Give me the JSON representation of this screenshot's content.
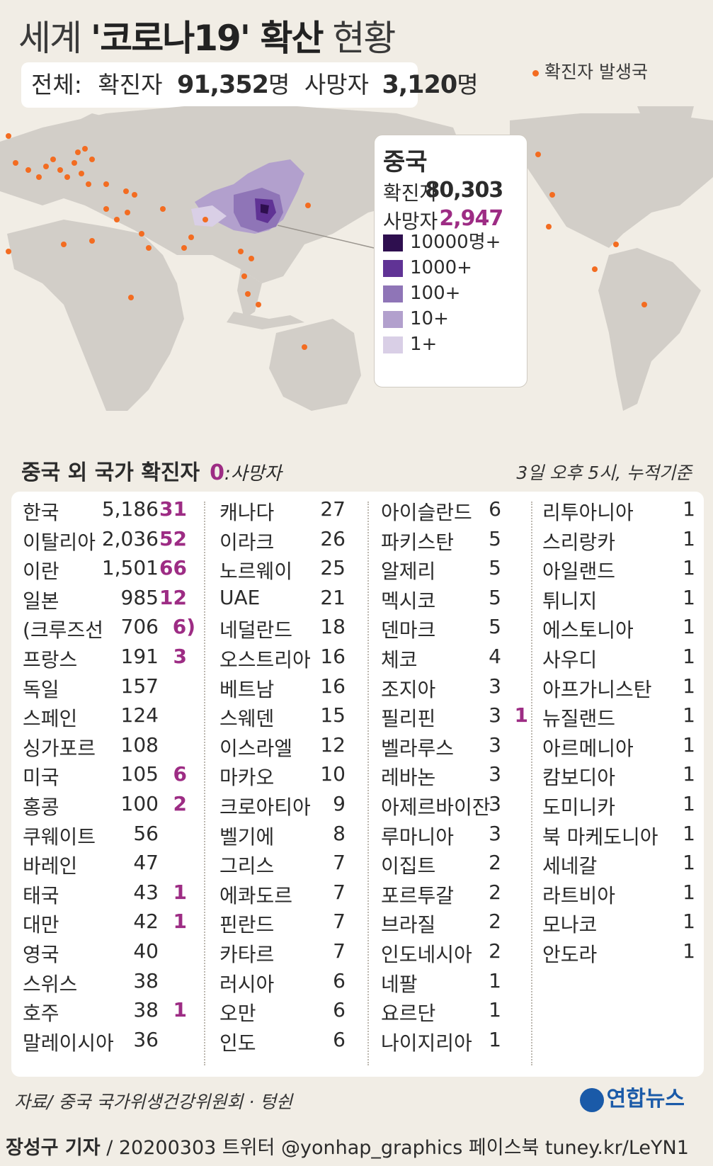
{
  "title": {
    "part1": "세계 ",
    "part2": "'코로나19' 확산",
    "part3": " 현황"
  },
  "total": {
    "label": "전체:",
    "confirmed_label": "확진자",
    "confirmed_value": "91,352",
    "unit1": "명",
    "death_label": "사망자",
    "death_value": "3,120",
    "unit2": "명"
  },
  "map_legend": "확진자 발생국",
  "china": {
    "name": "중국",
    "confirmed_label": "확진자",
    "confirmed_value": "80,303",
    "death_label": "사망자",
    "death_value": "2,947",
    "scale": [
      {
        "label": "10000명+",
        "color": "#2e0f4f"
      },
      {
        "label": "1000+",
        "color": "#603395"
      },
      {
        "label": "100+",
        "color": "#8f75b7"
      },
      {
        "label": "10+",
        "color": "#b2a0cd"
      },
      {
        "label": "1+",
        "color": "#d9cfe6"
      }
    ]
  },
  "section": {
    "title": "중국 외 국가 확진자",
    "zero": "0",
    "death_label": ":사망자",
    "date_note": "3일 오후 5시, 누적기준"
  },
  "columns": [
    [
      {
        "name": "한국",
        "confirmed": "5,186",
        "deaths": "31"
      },
      {
        "name": "이탈리아",
        "confirmed": "2,036",
        "deaths": "52"
      },
      {
        "name": "이란",
        "confirmed": "1,501",
        "deaths": "66"
      },
      {
        "name": "일본",
        "confirmed": "985",
        "deaths": "12"
      },
      {
        "name": "(크루즈선",
        "confirmed": "706",
        "deaths": "6",
        "suffix": ")"
      },
      {
        "name": "프랑스",
        "confirmed": "191",
        "deaths": "3"
      },
      {
        "name": "독일",
        "confirmed": "157",
        "deaths": ""
      },
      {
        "name": "스페인",
        "confirmed": "124",
        "deaths": ""
      },
      {
        "name": "싱가포르",
        "confirmed": "108",
        "deaths": ""
      },
      {
        "name": "미국",
        "confirmed": "105",
        "deaths": "6"
      },
      {
        "name": "홍콩",
        "confirmed": "100",
        "deaths": "2"
      },
      {
        "name": "쿠웨이트",
        "confirmed": "56",
        "deaths": ""
      },
      {
        "name": "바레인",
        "confirmed": "47",
        "deaths": ""
      },
      {
        "name": "태국",
        "confirmed": "43",
        "deaths": "1"
      },
      {
        "name": "대만",
        "confirmed": "42",
        "deaths": "1"
      },
      {
        "name": "영국",
        "confirmed": "40",
        "deaths": ""
      },
      {
        "name": "스위스",
        "confirmed": "38",
        "deaths": ""
      },
      {
        "name": "호주",
        "confirmed": "38",
        "deaths": "1"
      },
      {
        "name": "말레이시아",
        "confirmed": "36",
        "deaths": ""
      }
    ],
    [
      {
        "name": "캐나다",
        "confirmed": "27",
        "deaths": ""
      },
      {
        "name": "이라크",
        "confirmed": "26",
        "deaths": ""
      },
      {
        "name": "노르웨이",
        "confirmed": "25",
        "deaths": ""
      },
      {
        "name": "UAE",
        "confirmed": "21",
        "deaths": ""
      },
      {
        "name": "네덜란드",
        "confirmed": "18",
        "deaths": ""
      },
      {
        "name": "오스트리아",
        "confirmed": "16",
        "deaths": ""
      },
      {
        "name": "베트남",
        "confirmed": "16",
        "deaths": ""
      },
      {
        "name": "스웨덴",
        "confirmed": "15",
        "deaths": ""
      },
      {
        "name": "이스라엘",
        "confirmed": "12",
        "deaths": ""
      },
      {
        "name": "마카오",
        "confirmed": "10",
        "deaths": ""
      },
      {
        "name": "크로아티아",
        "confirmed": "9",
        "deaths": ""
      },
      {
        "name": "벨기에",
        "confirmed": "8",
        "deaths": ""
      },
      {
        "name": "그리스",
        "confirmed": "7",
        "deaths": ""
      },
      {
        "name": "에콰도르",
        "confirmed": "7",
        "deaths": ""
      },
      {
        "name": "핀란드",
        "confirmed": "7",
        "deaths": ""
      },
      {
        "name": "카타르",
        "confirmed": "7",
        "deaths": ""
      },
      {
        "name": "러시아",
        "confirmed": "6",
        "deaths": ""
      },
      {
        "name": "오만",
        "confirmed": "6",
        "deaths": ""
      },
      {
        "name": "인도",
        "confirmed": "6",
        "deaths": ""
      }
    ],
    [
      {
        "name": "아이슬란드",
        "confirmed": "6",
        "deaths": ""
      },
      {
        "name": "파키스탄",
        "confirmed": "5",
        "deaths": ""
      },
      {
        "name": "알제리",
        "confirmed": "5",
        "deaths": ""
      },
      {
        "name": "멕시코",
        "confirmed": "5",
        "deaths": ""
      },
      {
        "name": "덴마크",
        "confirmed": "5",
        "deaths": ""
      },
      {
        "name": "체코",
        "confirmed": "4",
        "deaths": ""
      },
      {
        "name": "조지아",
        "confirmed": "3",
        "deaths": ""
      },
      {
        "name": "필리핀",
        "confirmed": "3",
        "deaths": "1"
      },
      {
        "name": "벨라루스",
        "confirmed": "3",
        "deaths": ""
      },
      {
        "name": "레바논",
        "confirmed": "3",
        "deaths": ""
      },
      {
        "name": "아제르바이잔",
        "confirmed": "3",
        "deaths": ""
      },
      {
        "name": "루마니아",
        "confirmed": "3",
        "deaths": ""
      },
      {
        "name": "이집트",
        "confirmed": "2",
        "deaths": ""
      },
      {
        "name": "포르투갈",
        "confirmed": "2",
        "deaths": ""
      },
      {
        "name": "브라질",
        "confirmed": "2",
        "deaths": ""
      },
      {
        "name": "인도네시아",
        "confirmed": "2",
        "deaths": ""
      },
      {
        "name": "네팔",
        "confirmed": "1",
        "deaths": ""
      },
      {
        "name": "요르단",
        "confirmed": "1",
        "deaths": ""
      },
      {
        "name": "나이지리아",
        "confirmed": "1",
        "deaths": ""
      }
    ],
    [
      {
        "name": "리투아니아",
        "confirmed": "1",
        "deaths": ""
      },
      {
        "name": "스리랑카",
        "confirmed": "1",
        "deaths": ""
      },
      {
        "name": "아일랜드",
        "confirmed": "1",
        "deaths": ""
      },
      {
        "name": "튀니지",
        "confirmed": "1",
        "deaths": ""
      },
      {
        "name": "에스토니아",
        "confirmed": "1",
        "deaths": ""
      },
      {
        "name": "사우디",
        "confirmed": "1",
        "deaths": ""
      },
      {
        "name": "아프가니스탄",
        "confirmed": "1",
        "deaths": ""
      },
      {
        "name": "뉴질랜드",
        "confirmed": "1",
        "deaths": ""
      },
      {
        "name": "아르메니아",
        "confirmed": "1",
        "deaths": ""
      },
      {
        "name": "캄보디아",
        "confirmed": "1",
        "deaths": ""
      },
      {
        "name": "도미니카",
        "confirmed": "1",
        "deaths": ""
      },
      {
        "name": "북 마케도니아",
        "confirmed": "1",
        "deaths": ""
      },
      {
        "name": "세네갈",
        "confirmed": "1",
        "deaths": ""
      },
      {
        "name": "라트비아",
        "confirmed": "1",
        "deaths": ""
      },
      {
        "name": "모나코",
        "confirmed": "1",
        "deaths": ""
      },
      {
        "name": "안도라",
        "confirmed": "1",
        "deaths": ""
      }
    ]
  ],
  "footer": {
    "source": "자료/ 중국 국가위생건강위원회 · 텅쉰",
    "logo": "연합뉴스",
    "credit_name": "장성구 기자",
    "credit_rest": " / 20200303  트위터 @yonhap_graphics  페이스북 tuney.kr/LeYN1"
  },
  "colors": {
    "background": "#f1ede5",
    "land": "#d2cec8",
    "dot": "#f36c21",
    "death": "#9d2c84"
  }
}
